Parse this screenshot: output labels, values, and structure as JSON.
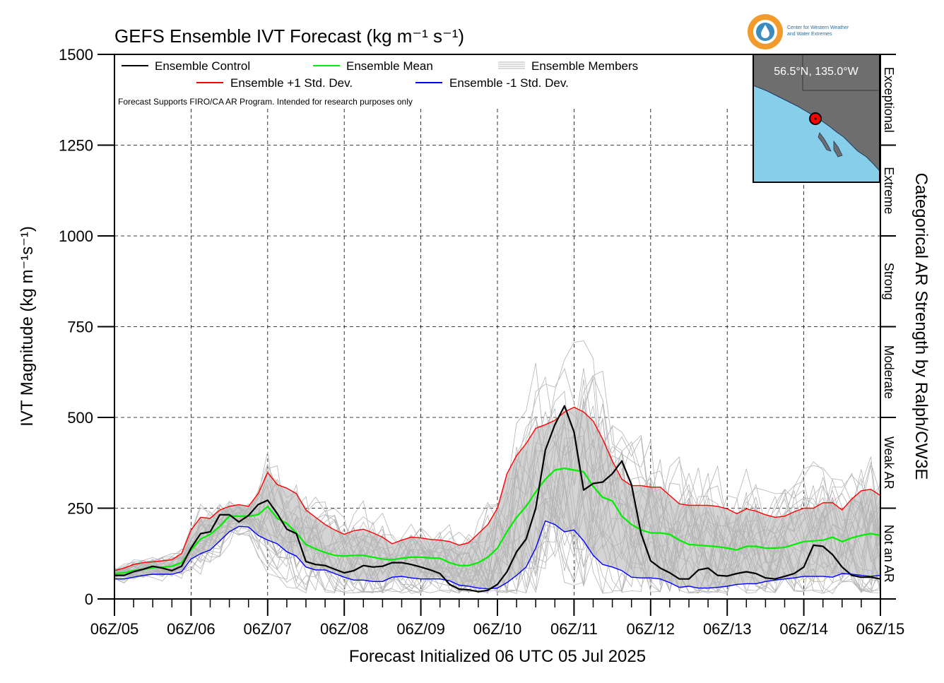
{
  "chart_data": {
    "type": "line",
    "title": "GEFS Ensemble IVT Forecast (kg m⁻¹ s⁻¹)",
    "xlabel": "Forecast Initialized 06 UTC 05 Jul 2025",
    "ylabel": "IVT Magnitude (kg m⁻¹s⁻¹)",
    "right_label": "Categorical AR Strength by Ralph/CW3E",
    "ylim": [
      0,
      1500
    ],
    "yticks": [
      "0",
      "250",
      "500",
      "750",
      "1000",
      "1250",
      "1500"
    ],
    "ytick_values": [
      0,
      250,
      500,
      750,
      1000,
      1250,
      1500
    ],
    "xticks": [
      "06Z/05",
      "06Z/06",
      "06Z/07",
      "06Z/08",
      "06Z/09",
      "06Z/10",
      "06Z/11",
      "06Z/12",
      "06Z/13",
      "06Z/14",
      "06Z/15"
    ],
    "x_unit": "forecast day (0 = 06Z/05)",
    "grid": true,
    "legend_placement": "top-left",
    "note": "Forecast Supports FIRO/CA AR Program. Intended for research purposes only",
    "categories_right": [
      "Not an AR",
      "Weak AR",
      "Moderate",
      "Strong",
      "Extreme",
      "Exceptional"
    ],
    "category_bounds": [
      0,
      250,
      500,
      750,
      1000,
      1250,
      1500
    ],
    "inset": {
      "label": "56.5°N, 135.0°W"
    },
    "logo": {
      "line1": "Center for Western Weather",
      "line2": "and Water Extremes"
    },
    "series": [
      {
        "name": "Ensemble Control",
        "color": "#000000",
        "x": [
          0,
          0.125,
          0.25,
          0.375,
          0.5,
          0.625,
          0.75,
          0.875,
          1.0,
          1.125,
          1.25,
          1.375,
          1.5,
          1.625,
          1.75,
          1.875,
          2.0,
          2.125,
          2.25,
          2.375,
          2.5,
          2.625,
          2.75,
          2.875,
          3.0,
          3.125,
          3.25,
          3.375,
          3.5,
          3.625,
          3.75,
          3.875,
          4.0,
          4.125,
          4.25,
          4.375,
          4.5,
          4.625,
          4.75,
          4.875,
          5.0,
          5.125,
          5.25,
          5.375,
          5.5,
          5.625,
          5.75,
          5.875,
          6.0,
          6.125,
          6.25,
          6.375,
          6.5,
          6.625,
          6.75,
          6.875,
          7.0,
          7.125,
          7.25,
          7.375,
          7.5,
          7.625,
          7.75,
          7.875,
          8.0,
          8.125,
          8.25,
          8.375,
          8.5,
          8.625,
          8.75,
          8.875,
          9.0,
          9.125,
          9.25,
          9.375,
          9.5,
          9.625,
          9.75,
          9.875,
          10.0
        ],
        "values": [
          65,
          65,
          75,
          82,
          90,
          85,
          78,
          90,
          140,
          180,
          185,
          232,
          232,
          212,
          230,
          260,
          272,
          235,
          192,
          180,
          103,
          95,
          92,
          82,
          72,
          78,
          92,
          88,
          90,
          100,
          100,
          95,
          88,
          80,
          70,
          40,
          27,
          25,
          20,
          24,
          40,
          75,
          130,
          165,
          250,
          410,
          480,
          532,
          460,
          300,
          318,
          322,
          345,
          380,
          315,
          180,
          105,
          85,
          72,
          55,
          55,
          80,
          85,
          65,
          63,
          70,
          75,
          70,
          58,
          55,
          62,
          70,
          88,
          148,
          145,
          122,
          88,
          65,
          60,
          60,
          55
        ]
      },
      {
        "name": "Ensemble Mean",
        "color": "#00ee00",
        "x": [
          0,
          0.125,
          0.25,
          0.375,
          0.5,
          0.625,
          0.75,
          0.875,
          1.0,
          1.125,
          1.25,
          1.375,
          1.5,
          1.625,
          1.75,
          1.875,
          2.0,
          2.125,
          2.25,
          2.375,
          2.5,
          2.625,
          2.75,
          2.875,
          3.0,
          3.125,
          3.25,
          3.375,
          3.5,
          3.625,
          3.75,
          3.875,
          4.0,
          4.125,
          4.25,
          4.375,
          4.5,
          4.625,
          4.75,
          4.875,
          5.0,
          5.125,
          5.25,
          5.375,
          5.5,
          5.625,
          5.75,
          5.875,
          6.0,
          6.125,
          6.25,
          6.375,
          6.5,
          6.625,
          6.75,
          6.875,
          7.0,
          7.125,
          7.25,
          7.375,
          7.5,
          7.625,
          7.75,
          7.875,
          8.0,
          8.125,
          8.25,
          8.375,
          8.5,
          8.625,
          8.75,
          8.875,
          9.0,
          9.125,
          9.25,
          9.375,
          9.5,
          9.625,
          9.75,
          9.875,
          10.0
        ],
        "values": [
          70,
          72,
          78,
          82,
          86,
          88,
          90,
          100,
          135,
          165,
          178,
          200,
          228,
          228,
          228,
          232,
          255,
          222,
          208,
          182,
          150,
          138,
          128,
          120,
          118,
          120,
          120,
          115,
          110,
          108,
          112,
          115,
          115,
          113,
          112,
          100,
          92,
          92,
          100,
          115,
          140,
          185,
          225,
          255,
          295,
          330,
          355,
          360,
          355,
          350,
          310,
          280,
          270,
          228,
          205,
          190,
          182,
          182,
          178,
          162,
          150,
          148,
          146,
          144,
          140,
          135,
          145,
          145,
          140,
          140,
          142,
          150,
          158,
          160,
          162,
          170,
          158,
          168,
          175,
          180,
          175
        ]
      },
      {
        "name": "Ensemble +1 Std. Dev.",
        "color": "#ff0000",
        "x": [
          0,
          0.125,
          0.25,
          0.375,
          0.5,
          0.625,
          0.75,
          0.875,
          1.0,
          1.125,
          1.25,
          1.375,
          1.5,
          1.625,
          1.75,
          1.875,
          2.0,
          2.125,
          2.25,
          2.375,
          2.5,
          2.625,
          2.75,
          2.875,
          3.0,
          3.125,
          3.25,
          3.375,
          3.5,
          3.625,
          3.75,
          3.875,
          4.0,
          4.125,
          4.25,
          4.375,
          4.5,
          4.625,
          4.75,
          4.875,
          5.0,
          5.125,
          5.25,
          5.375,
          5.5,
          5.625,
          5.75,
          5.875,
          6.0,
          6.125,
          6.25,
          6.375,
          6.5,
          6.625,
          6.75,
          6.875,
          7.0,
          7.125,
          7.25,
          7.375,
          7.5,
          7.625,
          7.75,
          7.875,
          8.0,
          8.125,
          8.25,
          8.375,
          8.5,
          8.625,
          8.75,
          8.875,
          9.0,
          9.125,
          9.25,
          9.375,
          9.5,
          9.625,
          9.75,
          9.875,
          10.0
        ],
        "values": [
          78,
          85,
          95,
          100,
          102,
          105,
          108,
          125,
          190,
          225,
          222,
          245,
          255,
          260,
          255,
          290,
          348,
          315,
          305,
          290,
          245,
          225,
          205,
          190,
          178,
          188,
          192,
          182,
          170,
          152,
          162,
          170,
          168,
          164,
          162,
          158,
          148,
          155,
          180,
          205,
          250,
          345,
          395,
          428,
          470,
          480,
          492,
          515,
          528,
          515,
          490,
          440,
          380,
          330,
          312,
          312,
          308,
          308,
          285,
          262,
          258,
          258,
          258,
          255,
          248,
          235,
          248,
          242,
          232,
          225,
          228,
          240,
          250,
          250,
          265,
          265,
          245,
          275,
          298,
          302,
          285
        ]
      },
      {
        "name": "Ensemble -1 Std. Dev.",
        "color": "#0000ff",
        "x": [
          0,
          0.125,
          0.25,
          0.375,
          0.5,
          0.625,
          0.75,
          0.875,
          1.0,
          1.125,
          1.25,
          1.375,
          1.5,
          1.625,
          1.75,
          1.875,
          2.0,
          2.125,
          2.25,
          2.375,
          2.5,
          2.625,
          2.75,
          2.875,
          3.0,
          3.125,
          3.25,
          3.375,
          3.5,
          3.625,
          3.75,
          3.875,
          4.0,
          4.125,
          4.25,
          4.375,
          4.5,
          4.625,
          4.75,
          4.875,
          5.0,
          5.125,
          5.25,
          5.375,
          5.5,
          5.625,
          5.75,
          5.875,
          6.0,
          6.125,
          6.25,
          6.375,
          6.5,
          6.625,
          6.75,
          6.875,
          7.0,
          7.125,
          7.25,
          7.375,
          7.5,
          7.625,
          7.75,
          7.875,
          8.0,
          8.125,
          8.25,
          8.375,
          8.5,
          8.625,
          8.75,
          8.875,
          9.0,
          9.125,
          9.25,
          9.375,
          9.5,
          9.625,
          9.75,
          9.875,
          10.0
        ],
        "values": [
          55,
          55,
          60,
          65,
          68,
          68,
          68,
          75,
          110,
          125,
          135,
          160,
          185,
          200,
          198,
          175,
          162,
          152,
          130,
          118,
          88,
          80,
          80,
          70,
          60,
          52,
          52,
          48,
          48,
          60,
          62,
          58,
          55,
          55,
          55,
          50,
          38,
          35,
          30,
          28,
          30,
          45,
          65,
          88,
          140,
          215,
          205,
          185,
          190,
          160,
          120,
          95,
          88,
          78,
          60,
          58,
          58,
          55,
          45,
          32,
          35,
          30,
          30,
          32,
          35,
          40,
          42,
          42,
          48,
          52,
          55,
          58,
          62,
          62,
          62,
          60,
          70,
          68,
          65,
          62,
          65
        ]
      }
    ]
  }
}
